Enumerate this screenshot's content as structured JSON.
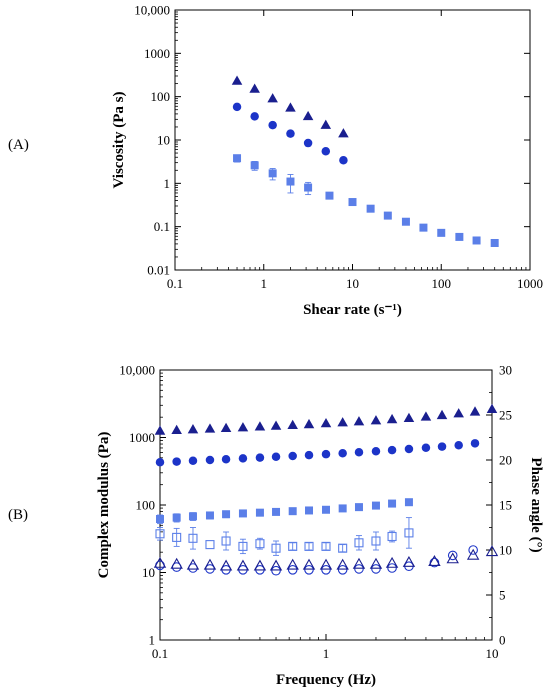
{
  "panels": {
    "a": "(A)",
    "b": "(B)"
  },
  "colors": {
    "dark": "#1a1f8f",
    "medium": "#1c34c8",
    "light": "#5b7fe8"
  },
  "chart_data": [
    {
      "type": "scatter",
      "xlabel": "Shear rate (s⁻¹)",
      "ylabel": "Viscosity (Pa s)",
      "xscale": "log",
      "yscale": "log",
      "xlim": [
        0.1,
        1000
      ],
      "ylim": [
        0.01,
        10000
      ],
      "xticks": [
        0.1,
        1,
        10,
        100,
        1000
      ],
      "xticklabels": [
        "0.1",
        "1",
        "10",
        "100",
        "1000"
      ],
      "yticks": [
        0.01,
        0.1,
        1,
        10,
        100,
        1000,
        10000
      ],
      "yticklabels": [
        "0.01",
        "0.1",
        "1",
        "10",
        "100",
        "1000",
        "10,000"
      ],
      "grid": false,
      "series": [
        {
          "marker": "triangle",
          "color": "#1a1f8f",
          "x": [
            0.5,
            0.79,
            1.26,
            2.0,
            3.16,
            5.0,
            7.9
          ],
          "y": [
            230,
            150,
            90,
            55,
            35,
            22,
            14
          ]
        },
        {
          "marker": "circle",
          "color": "#1c34c8",
          "x": [
            0.5,
            0.79,
            1.26,
            2.0,
            3.16,
            5.0,
            7.9
          ],
          "y": [
            58,
            35,
            22,
            14,
            8.5,
            5.5,
            3.4
          ]
        },
        {
          "marker": "square",
          "color": "#5b7fe8",
          "x": [
            0.5,
            0.79,
            1.26,
            2.0,
            3.16,
            5.5,
            10,
            16,
            25,
            40,
            63,
            100,
            160,
            250,
            400
          ],
          "y": [
            3.8,
            2.6,
            1.7,
            1.1,
            0.8,
            0.52,
            0.37,
            0.26,
            0.18,
            0.13,
            0.095,
            0.072,
            0.058,
            0.048,
            0.042
          ],
          "yerr": [
            0.7,
            0.6,
            0.5,
            0.5,
            0.25,
            0.08,
            0,
            0,
            0,
            0,
            0,
            0,
            0,
            0,
            0
          ]
        }
      ]
    },
    {
      "type": "scatter",
      "xlabel": "Frequency (Hz)",
      "ylabel": "Complex modulus (Pa)",
      "y2label": "Phase angle (°)",
      "xscale": "log",
      "yscale": "log",
      "xlim": [
        0.1,
        10
      ],
      "ylim": [
        1,
        10000
      ],
      "y2lim": [
        0,
        30
      ],
      "xticks": [
        0.1,
        1,
        10
      ],
      "xticklabels": [
        "0.1",
        "1",
        "10"
      ],
      "yticks": [
        1,
        10,
        100,
        1000,
        10000
      ],
      "yticklabels": [
        "1",
        "10",
        "100",
        "1000",
        "10,000"
      ],
      "y2ticks": [
        0,
        5,
        10,
        15,
        20,
        25,
        30
      ],
      "y2ticklabels": [
        "0",
        "5",
        "10",
        "15",
        "20",
        "25",
        "30"
      ],
      "grid": false,
      "series": [
        {
          "marker": "triangle",
          "filled": true,
          "axis": "left",
          "color": "#1a1f8f",
          "x": [
            0.1,
            0.126,
            0.158,
            0.2,
            0.25,
            0.316,
            0.4,
            0.5,
            0.63,
            0.79,
            1.0,
            1.26,
            1.58,
            2.0,
            2.5,
            3.16,
            4.0,
            5.0,
            6.3,
            7.9,
            10
          ],
          "y": [
            1250,
            1280,
            1310,
            1340,
            1370,
            1400,
            1440,
            1480,
            1520,
            1560,
            1610,
            1660,
            1720,
            1780,
            1850,
            1930,
            2020,
            2130,
            2260,
            2400,
            2620
          ]
        },
        {
          "marker": "circle",
          "filled": true,
          "axis": "left",
          "color": "#1c34c8",
          "x": [
            0.1,
            0.126,
            0.158,
            0.2,
            0.25,
            0.316,
            0.4,
            0.5,
            0.63,
            0.79,
            1.0,
            1.26,
            1.58,
            2.0,
            2.5,
            3.16,
            4.0,
            5.0,
            6.3,
            7.9
          ],
          "y": [
            430,
            440,
            452,
            464,
            476,
            490,
            504,
            518,
            532,
            548,
            566,
            584,
            604,
            626,
            650,
            676,
            704,
            734,
            768,
            820
          ]
        },
        {
          "marker": "square",
          "filled": true,
          "axis": "left",
          "color": "#5b7fe8",
          "x": [
            0.1,
            0.126,
            0.158,
            0.2,
            0.25,
            0.316,
            0.4,
            0.5,
            0.63,
            0.79,
            1.0,
            1.26,
            1.58,
            2.0,
            2.5,
            3.16
          ],
          "y": [
            62,
            65,
            68,
            70,
            73,
            75,
            77,
            79,
            81,
            83,
            85,
            89,
            93,
            98,
            105,
            110
          ],
          "yerr": [
            9,
            9,
            9,
            8,
            8,
            7,
            6,
            0,
            0,
            0,
            0,
            0,
            0,
            0,
            0,
            0
          ]
        },
        {
          "marker": "square",
          "filled": false,
          "axis": "right",
          "color": "#5b7fe8",
          "x": [
            0.1,
            0.126,
            0.158,
            0.2,
            0.25,
            0.316,
            0.4,
            0.5,
            0.63,
            0.79,
            1.0,
            1.26,
            1.58,
            2.0,
            2.5,
            3.16
          ],
          "y": [
            11.8,
            11.4,
            11.3,
            10.6,
            11.0,
            10.4,
            10.7,
            10.2,
            10.4,
            10.4,
            10.4,
            10.2,
            10.8,
            11.0,
            11.5,
            11.9
          ],
          "yerr": [
            0.7,
            1.0,
            1.2,
            0,
            1.0,
            0.8,
            0.6,
            0.8,
            0.4,
            0.4,
            0.4,
            0.4,
            0.8,
            1.0,
            0.6,
            1.7
          ]
        },
        {
          "marker": "circle",
          "filled": false,
          "axis": "right",
          "color": "#1c34c8",
          "x": [
            0.1,
            0.126,
            0.158,
            0.2,
            0.25,
            0.316,
            0.4,
            0.5,
            0.63,
            0.79,
            1.0,
            1.26,
            1.58,
            2.0,
            2.5,
            3.16,
            4.5,
            5.8,
            7.7
          ],
          "y": [
            8.3,
            8.1,
            8.0,
            7.9,
            7.8,
            7.8,
            7.8,
            7.7,
            7.8,
            7.8,
            7.8,
            7.8,
            7.9,
            7.9,
            8.0,
            8.2,
            8.6,
            9.4,
            10.0
          ]
        },
        {
          "marker": "triangle",
          "filled": false,
          "axis": "right",
          "color": "#1a1f8f",
          "x": [
            0.1,
            0.126,
            0.158,
            0.2,
            0.25,
            0.316,
            0.4,
            0.5,
            0.63,
            0.79,
            1.0,
            1.26,
            1.58,
            2.0,
            2.5,
            3.16,
            4.5,
            5.8,
            7.7,
            10
          ],
          "y": [
            8.5,
            8.4,
            8.3,
            8.3,
            8.2,
            8.2,
            8.2,
            8.2,
            8.3,
            8.3,
            8.3,
            8.3,
            8.4,
            8.4,
            8.5,
            8.6,
            8.7,
            9.0,
            9.4,
            9.8
          ]
        }
      ]
    }
  ]
}
